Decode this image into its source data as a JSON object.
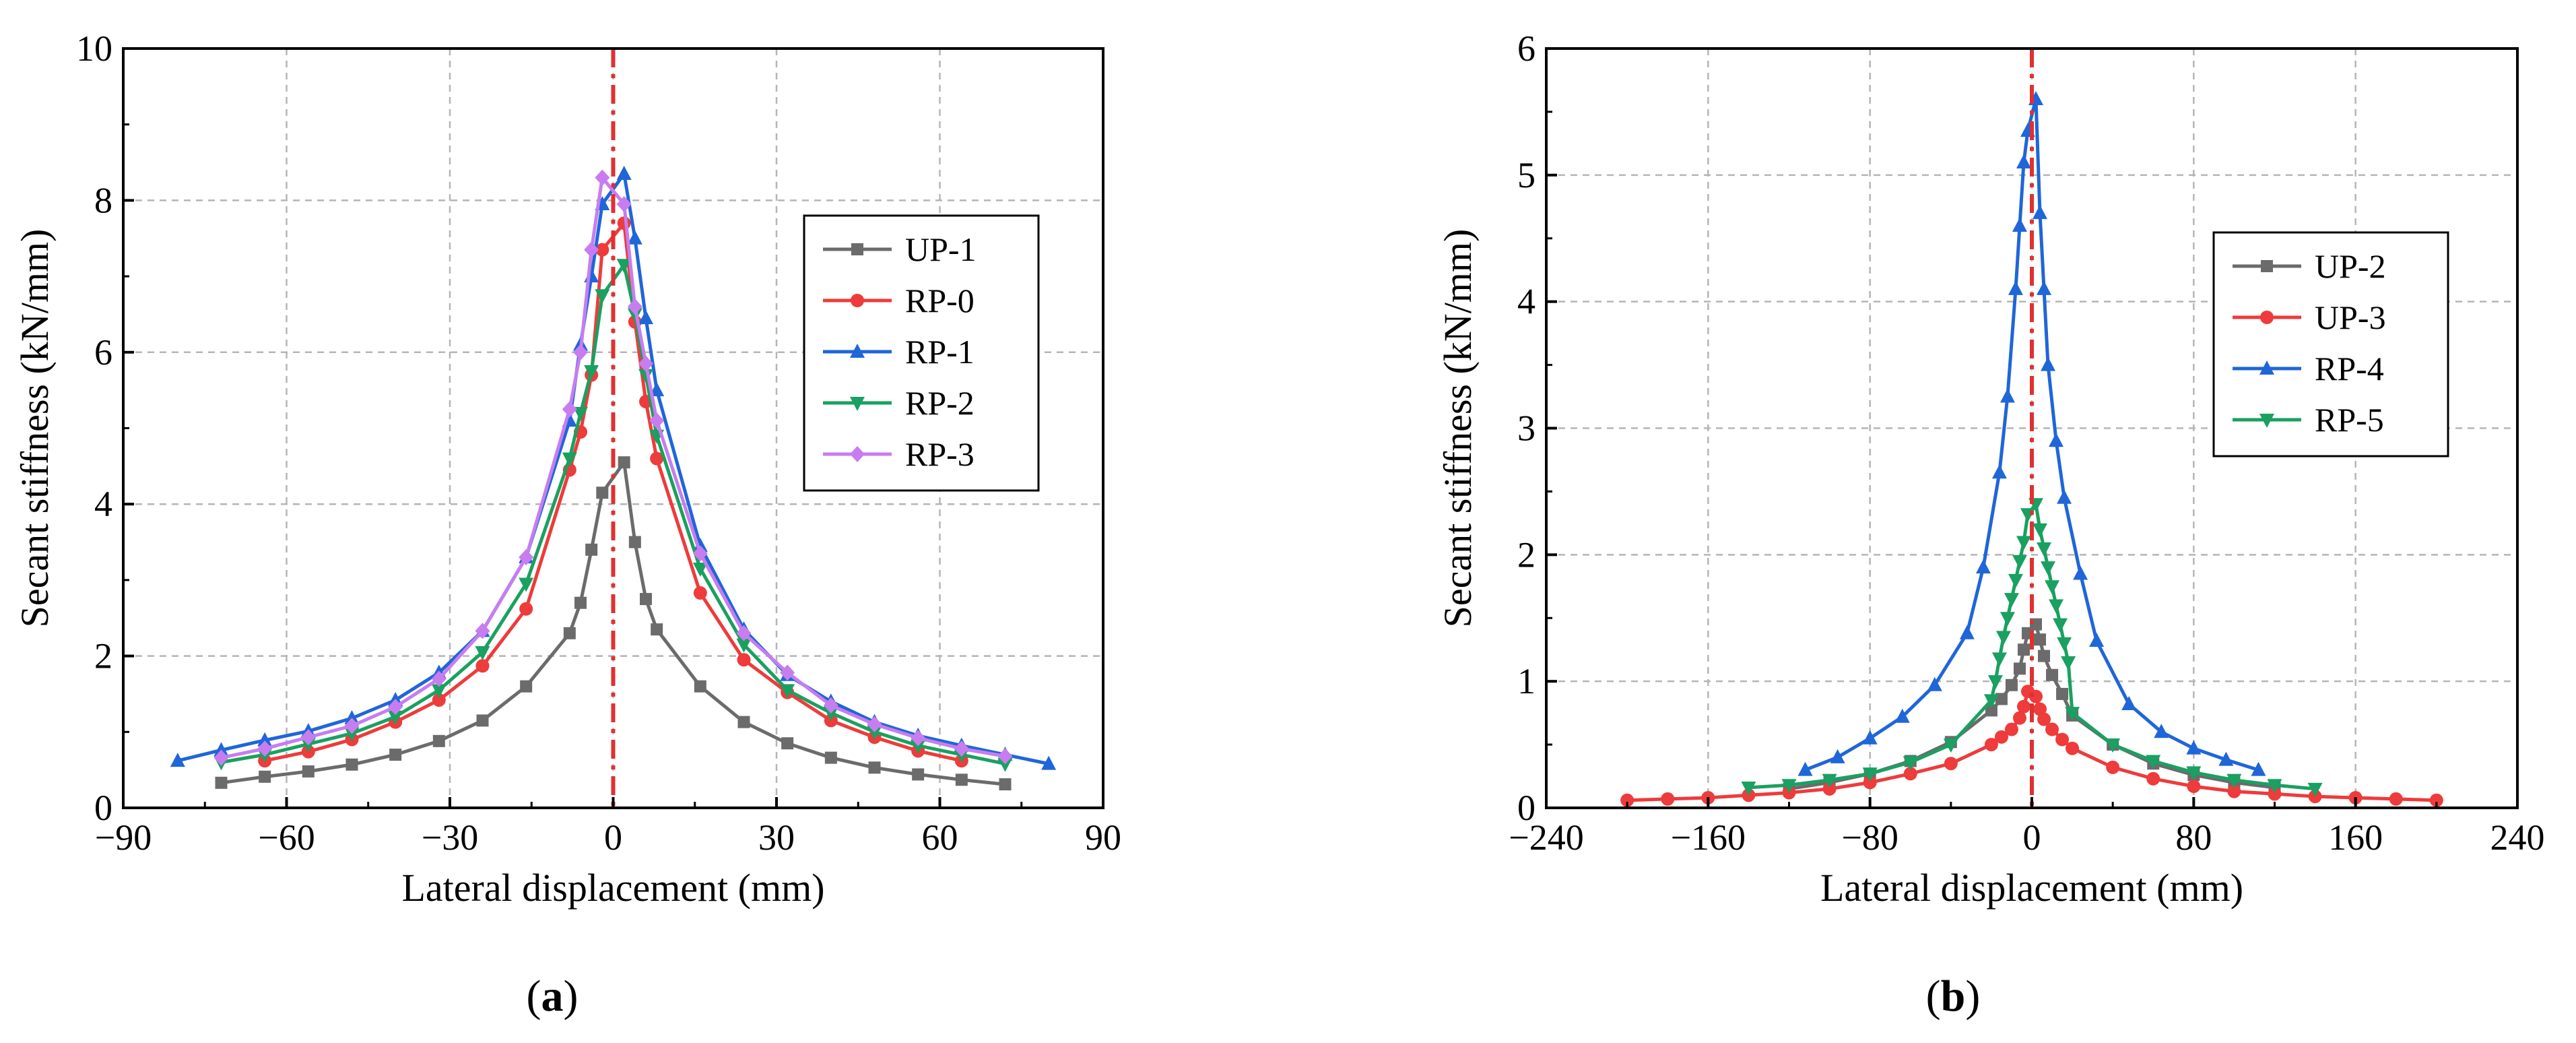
{
  "chart_data": [
    {
      "type": "line",
      "panel": "a",
      "caption_open": "(",
      "caption_letter": "a",
      "caption_close": ")",
      "xlabel": "Lateral displacement (mm)",
      "ylabel": "Secant stiffness (kN/mm)",
      "xlim": [
        -90,
        90
      ],
      "ylim": [
        0,
        10
      ],
      "xticks": [
        -90,
        -60,
        -30,
        0,
        30,
        60,
        90
      ],
      "yticks": [
        0,
        2,
        4,
        6,
        8,
        10
      ],
      "xtick_labels": [
        "−90",
        "−60",
        "−30",
        "0",
        "30",
        "60",
        "90"
      ],
      "ytick_labels": [
        "0",
        "2",
        "4",
        "6",
        "8",
        "10"
      ],
      "grid": true,
      "legend_position": "right",
      "vline_x": 0,
      "series": [
        {
          "name": "UP-1",
          "color": "#6b6b6b",
          "marker": "square",
          "x": [
            -72,
            -64,
            -56,
            -48,
            -40,
            -32,
            -24,
            -16,
            -8,
            -6,
            -4,
            -2,
            2,
            4,
            6,
            8,
            16,
            24,
            32,
            40,
            48,
            56,
            64,
            72
          ],
          "y": [
            0.33,
            0.41,
            0.48,
            0.57,
            0.7,
            0.88,
            1.15,
            1.6,
            2.3,
            2.7,
            3.4,
            4.15,
            4.55,
            3.5,
            2.75,
            2.35,
            1.6,
            1.13,
            0.85,
            0.66,
            0.53,
            0.44,
            0.37,
            0.31
          ]
        },
        {
          "name": "RP-0",
          "color": "#ee3b3b",
          "marker": "circle",
          "x": [
            -64,
            -56,
            -48,
            -40,
            -32,
            -24,
            -16,
            -8,
            -6,
            -4,
            -2,
            2,
            4,
            6,
            8,
            16,
            24,
            32,
            40,
            48,
            56,
            64
          ],
          "y": [
            0.62,
            0.74,
            0.9,
            1.13,
            1.42,
            1.87,
            2.62,
            4.45,
            4.95,
            5.7,
            7.35,
            7.7,
            6.4,
            5.35,
            4.6,
            2.83,
            1.95,
            1.52,
            1.15,
            0.93,
            0.75,
            0.62
          ]
        },
        {
          "name": "RP-1",
          "color": "#1f66d8",
          "marker": "triangle-up",
          "x": [
            -80,
            -72,
            -64,
            -56,
            -48,
            -40,
            -32,
            -24,
            -16,
            -8,
            -6,
            -4,
            -2,
            2,
            4,
            6,
            8,
            16,
            24,
            32,
            40,
            48,
            56,
            64,
            72,
            80
          ],
          "y": [
            0.62,
            0.76,
            0.89,
            1.01,
            1.18,
            1.42,
            1.78,
            2.33,
            3.3,
            5.1,
            6.1,
            7.0,
            7.95,
            8.35,
            7.5,
            6.45,
            5.5,
            3.45,
            2.35,
            1.75,
            1.4,
            1.13,
            0.95,
            0.82,
            0.7,
            0.58
          ]
        },
        {
          "name": "RP-2",
          "color": "#1aa060",
          "marker": "triangle-down",
          "x": [
            -72,
            -64,
            -56,
            -48,
            -40,
            -32,
            -24,
            -16,
            -8,
            -6,
            -4,
            -2,
            2,
            4,
            6,
            8,
            16,
            24,
            32,
            40,
            48,
            56,
            64,
            72
          ],
          "y": [
            0.6,
            0.7,
            0.84,
            0.98,
            1.2,
            1.55,
            2.05,
            2.95,
            4.6,
            5.2,
            5.75,
            6.75,
            7.15,
            6.5,
            5.7,
            4.9,
            3.15,
            2.15,
            1.55,
            1.25,
            1.0,
            0.82,
            0.7,
            0.58
          ]
        },
        {
          "name": "RP-3",
          "color": "#c77df0",
          "marker": "diamond",
          "x": [
            -72,
            -64,
            -56,
            -48,
            -40,
            -32,
            -24,
            -16,
            -8,
            -6,
            -4,
            -2,
            2,
            4,
            6,
            8,
            16,
            24,
            32,
            40,
            48,
            56,
            64,
            72
          ],
          "y": [
            0.66,
            0.78,
            0.93,
            1.08,
            1.33,
            1.7,
            2.33,
            3.3,
            5.25,
            6.0,
            7.35,
            8.3,
            7.95,
            6.6,
            5.85,
            5.1,
            3.35,
            2.3,
            1.78,
            1.35,
            1.1,
            0.92,
            0.78,
            0.68
          ]
        }
      ]
    },
    {
      "type": "line",
      "panel": "b",
      "caption_open": "(",
      "caption_letter": "b",
      "caption_close": ")",
      "xlabel": "Lateral displacement (mm)",
      "ylabel": "Secant stiffness (kN/mm)",
      "xlim": [
        -240,
        240
      ],
      "ylim": [
        0,
        6
      ],
      "xticks": [
        -240,
        -160,
        -80,
        0,
        80,
        160,
        240
      ],
      "yticks": [
        0,
        1,
        2,
        3,
        4,
        5,
        6
      ],
      "xtick_labels": [
        "−240",
        "−160",
        "−80",
        "0",
        "80",
        "160",
        "240"
      ],
      "ytick_labels": [
        "0",
        "1",
        "2",
        "3",
        "4",
        "5",
        "6"
      ],
      "grid": true,
      "legend_position": "right",
      "vline_x": 0,
      "series": [
        {
          "name": "UP-2",
          "color": "#6b6b6b",
          "marker": "square",
          "x": [
            -120,
            -100,
            -80,
            -60,
            -40,
            -20,
            -15,
            -10,
            -6,
            -4,
            -2,
            2,
            4,
            6,
            10,
            15,
            20,
            40,
            60,
            80,
            100,
            120
          ],
          "y": [
            0.15,
            0.2,
            0.27,
            0.37,
            0.52,
            0.77,
            0.86,
            0.97,
            1.1,
            1.25,
            1.38,
            1.45,
            1.33,
            1.2,
            1.05,
            0.9,
            0.73,
            0.5,
            0.35,
            0.26,
            0.2,
            0.16
          ]
        },
        {
          "name": "UP-3",
          "color": "#ee3b3b",
          "marker": "circle",
          "x": [
            -200,
            -180,
            -160,
            -140,
            -120,
            -100,
            -80,
            -60,
            -40,
            -20,
            -15,
            -10,
            -6,
            -4,
            -2,
            2,
            4,
            6,
            10,
            15,
            20,
            40,
            60,
            80,
            100,
            120,
            140,
            160,
            180,
            200
          ],
          "y": [
            0.06,
            0.07,
            0.08,
            0.1,
            0.12,
            0.15,
            0.2,
            0.27,
            0.35,
            0.5,
            0.56,
            0.62,
            0.71,
            0.8,
            0.92,
            0.88,
            0.78,
            0.7,
            0.62,
            0.54,
            0.47,
            0.32,
            0.23,
            0.17,
            0.13,
            0.11,
            0.09,
            0.08,
            0.07,
            0.06
          ]
        },
        {
          "name": "RP-4",
          "color": "#1f66d8",
          "marker": "triangle-up",
          "x": [
            -112,
            -96,
            -80,
            -64,
            -48,
            -32,
            -24,
            -16,
            -12,
            -8,
            -6,
            -4,
            -2,
            2,
            4,
            6,
            8,
            12,
            16,
            24,
            32,
            48,
            64,
            80,
            96,
            112
          ],
          "y": [
            0.3,
            0.4,
            0.55,
            0.72,
            0.97,
            1.38,
            1.9,
            2.65,
            3.25,
            4.1,
            4.6,
            5.1,
            5.35,
            5.6,
            4.7,
            4.1,
            3.5,
            2.9,
            2.45,
            1.85,
            1.32,
            0.82,
            0.6,
            0.47,
            0.38,
            0.3
          ]
        },
        {
          "name": "RP-5",
          "color": "#1aa060",
          "marker": "triangle-down",
          "x": [
            -140,
            -120,
            -100,
            -80,
            -60,
            -40,
            -20,
            -18,
            -16,
            -14,
            -12,
            -10,
            -8,
            -6,
            -4,
            -2,
            2,
            4,
            6,
            8,
            10,
            12,
            14,
            16,
            18,
            20,
            40,
            60,
            80,
            100,
            120,
            140
          ],
          "y": [
            0.16,
            0.18,
            0.22,
            0.27,
            0.36,
            0.5,
            0.85,
            1.0,
            1.18,
            1.35,
            1.5,
            1.65,
            1.8,
            1.95,
            2.1,
            2.32,
            2.4,
            2.2,
            2.05,
            1.9,
            1.75,
            1.6,
            1.45,
            1.3,
            1.15,
            0.75,
            0.5,
            0.37,
            0.28,
            0.22,
            0.18,
            0.15
          ]
        }
      ]
    }
  ]
}
